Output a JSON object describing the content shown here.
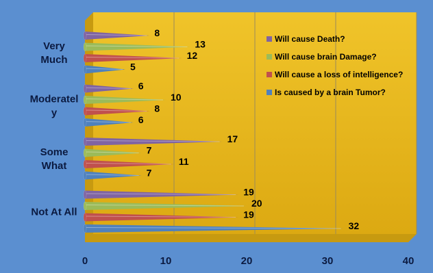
{
  "chart_data": {
    "type": "bar",
    "orientation": "horizontal",
    "style": "3d-cone",
    "categories": [
      "Not At All",
      "Some What",
      "Moderately",
      "Very Much"
    ],
    "category_labels": [
      [
        "Not At All"
      ],
      [
        "Some",
        "What"
      ],
      [
        "Moderatel",
        "y"
      ],
      [
        "Very",
        "Much"
      ]
    ],
    "series": [
      {
        "name": "Is caused by a brain Tumor?",
        "values": [
          32,
          7,
          6,
          5
        ],
        "color": "#4f81bd"
      },
      {
        "name": "Will cause a loss of intelligence?",
        "values": [
          19,
          11,
          8,
          12
        ],
        "color": "#c0504d"
      },
      {
        "name": "Will cause brain Damage?",
        "values": [
          20,
          7,
          10,
          13
        ],
        "color": "#9bbb59"
      },
      {
        "name": "Will cause Death?",
        "values": [
          19,
          17,
          6,
          8
        ],
        "color": "#8064a2"
      }
    ],
    "x_ticks": [
      "0",
      "10",
      "20",
      "30",
      "40"
    ],
    "xlim": [
      0,
      40
    ],
    "grid": true,
    "legend": "top-right",
    "colors": {
      "background": "#5b8fd0",
      "plot_wall": "#e6b919",
      "plot_floor": "#c79a10",
      "gridline": "#9a8a5a"
    }
  }
}
